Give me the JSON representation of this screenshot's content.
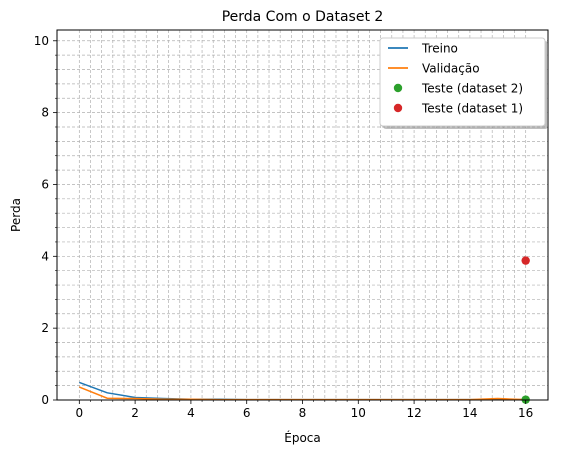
{
  "chart_data": {
    "type": "line",
    "title": "Perda Com o Dataset 2",
    "xlabel": "Época",
    "ylabel": "Perda",
    "xlim": [
      -0.8,
      16.8
    ],
    "ylim": [
      0,
      10.3
    ],
    "xticks": [
      0,
      2,
      4,
      6,
      8,
      10,
      12,
      14,
      16
    ],
    "yticks": [
      0,
      2,
      4,
      6,
      8,
      10
    ],
    "grid": "major and minor, dashed",
    "legend_position": "top-right",
    "series": [
      {
        "name": "Treino",
        "kind": "line",
        "color": "#1f77b4",
        "x": [
          0,
          1,
          2,
          3,
          4,
          5,
          6,
          7,
          8,
          9,
          10,
          11,
          12,
          13,
          14,
          15,
          16
        ],
        "y": [
          0.49,
          0.2,
          0.07,
          0.04,
          0.02,
          0.02,
          0.01,
          0.01,
          0.01,
          0.01,
          0.01,
          0.01,
          0.01,
          0.01,
          0.01,
          0.01,
          0.01
        ]
      },
      {
        "name": "Validação",
        "kind": "line",
        "color": "#ff7f0e",
        "x": [
          0,
          1,
          2,
          3,
          4,
          5,
          6,
          7,
          8,
          9,
          10,
          11,
          12,
          13,
          14,
          15,
          16
        ],
        "y": [
          0.36,
          0.05,
          0.04,
          0.02,
          0.02,
          0.01,
          0.01,
          0.01,
          0.01,
          0.01,
          0.01,
          0.01,
          0.01,
          0.01,
          0.01,
          0.04,
          0.01
        ]
      },
      {
        "name": "Teste (dataset 2)",
        "kind": "point",
        "color": "#2ca02c",
        "x": [
          16
        ],
        "y": [
          0.01
        ]
      },
      {
        "name": "Teste (dataset 1)",
        "kind": "point",
        "color": "#d62728",
        "x": [
          16
        ],
        "y": [
          3.88
        ]
      }
    ]
  }
}
